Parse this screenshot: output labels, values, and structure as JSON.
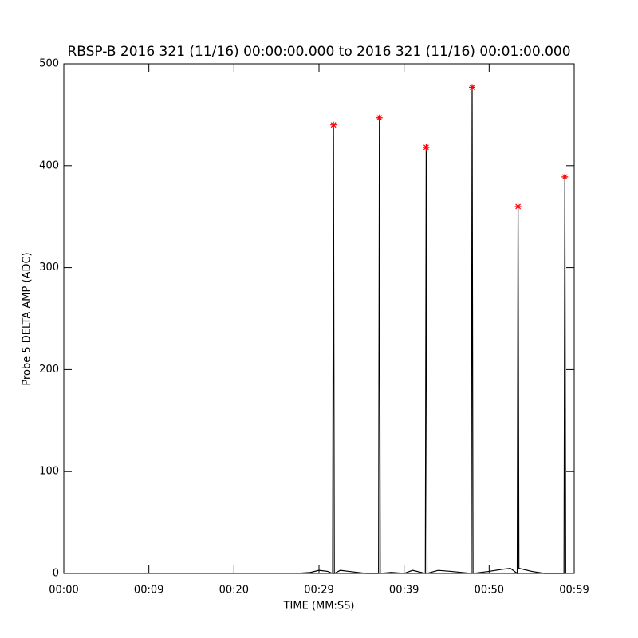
{
  "chart_data": {
    "type": "line",
    "title": "RBSP-B 2016 321 (11/16) 00:00:00.000 to 2016 321 (11/16) 00:01:00.000",
    "x_label": "TIME (MM:SS)",
    "y_label": "Probe 5 DELTA AMP (ADC)",
    "xlim": [
      0,
      60
    ],
    "xticks": [
      {
        "value": 0,
        "label": "00:00"
      },
      {
        "value": 10,
        "label": "00:09"
      },
      {
        "value": 20,
        "label": "00:20"
      },
      {
        "value": 30,
        "label": "00:29"
      },
      {
        "value": 40,
        "label": "00:39"
      },
      {
        "value": 50,
        "label": "00:50"
      },
      {
        "value": 60,
        "label": "00:59"
      }
    ],
    "ylim": [
      0,
      500
    ],
    "yticks": [
      0,
      100,
      200,
      300,
      400,
      500
    ],
    "series": [
      {
        "style": "line",
        "color": "#000000",
        "x": [
          27.4,
          29.0,
          30.0,
          31.0,
          31.6,
          31.7,
          31.8,
          32.5,
          33.5,
          35.5,
          37.0,
          37.1,
          37.2,
          38.5,
          40.0,
          41.0,
          42.5,
          42.6,
          42.7,
          44.0,
          45.5,
          47.9,
          48.0,
          48.1,
          50.0,
          51.5,
          52.5,
          53.3,
          53.4,
          53.5,
          55.0,
          56.5,
          58.8,
          58.9,
          59.0
        ],
        "values": [
          0,
          1,
          3,
          2,
          0,
          440,
          0,
          3,
          2,
          0,
          0,
          447,
          0,
          1,
          0,
          3,
          0,
          418,
          0,
          3,
          2,
          0,
          477,
          0,
          2,
          4,
          5,
          0,
          360,
          5,
          2,
          0,
          0,
          389,
          0
        ]
      },
      {
        "style": "star",
        "color": "#ff0000",
        "x": [
          31.7,
          37.1,
          42.6,
          48.0,
          53.4,
          58.9
        ],
        "values": [
          440,
          447,
          418,
          477,
          360,
          389
        ]
      }
    ]
  }
}
